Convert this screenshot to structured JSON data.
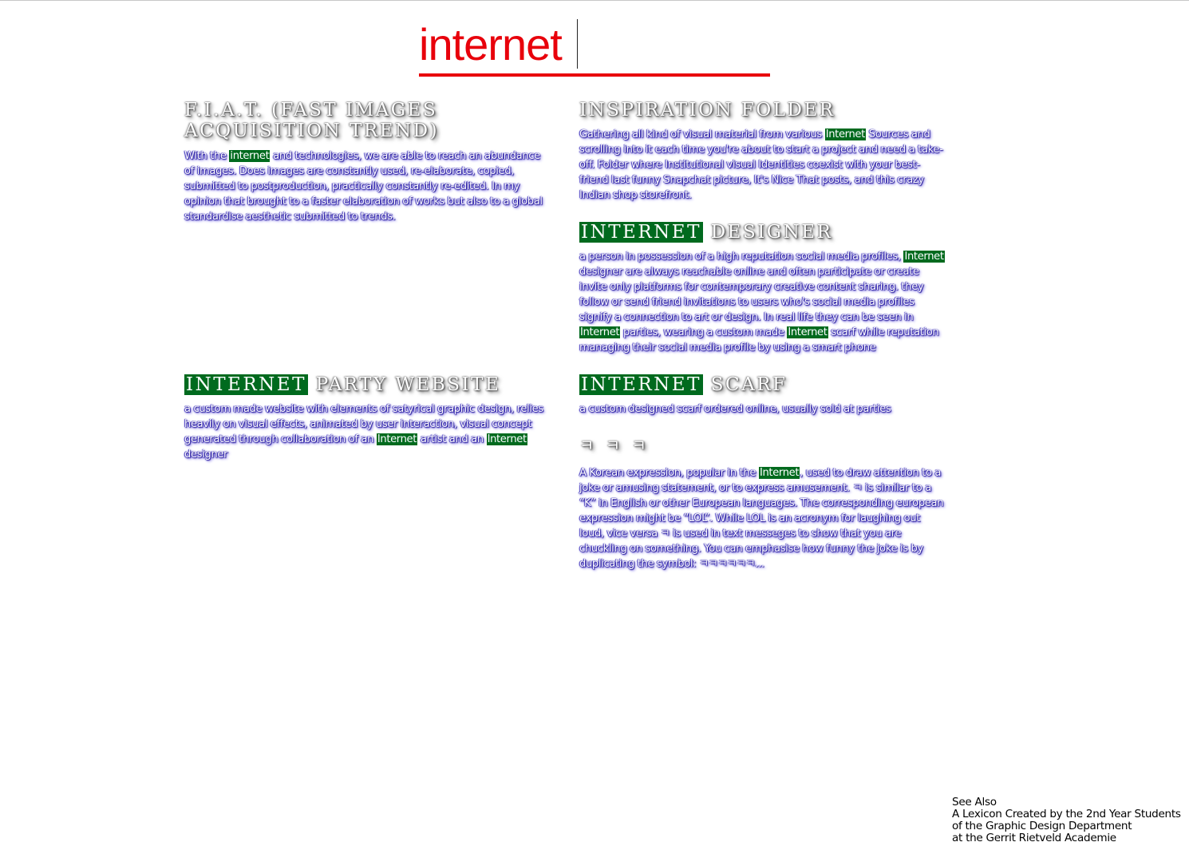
{
  "search": {
    "value": "internet",
    "color": "#e8000b"
  },
  "highlight_color": "#006a1e",
  "entries": {
    "fiat": {
      "title_line1": "F.I.A.T. (Fast images",
      "title_line2": "acquisition trend)",
      "p1": "With the ",
      "hl1": "internet",
      "p2": " and technologies, we are able to reach an abundance of images. Does images are constantly used, re-elaborate, copied, submitted to postproduction, practically constantly re-edited. In my opinion that brought to a faster elaboration of works but also to a global standardise aesthetic submitted to trends."
    },
    "inspiration": {
      "title": "Inspiration Folder",
      "p1": "Gathering all kind of visual material from various ",
      "hl1": "Internet",
      "p2": " Sources and scrolling into it each time you're about to start a project and need a take-off. Folder where Institutional visual Identities coexist with your best-friend last funny Snapchat picture, It's Nice That posts, and this crazy Indian shop storefront."
    },
    "designer": {
      "title_hl": "Internet",
      "title_rest": " Designer",
      "p1": "a person in possession of a high reputation social media profiles, ",
      "hl1": "Internet",
      "p2": " designer are always reachable online and often participate or create invite only platforms for contemporary creative content sharing. they follow or send friend invitations to users who's social media profiles signify a connection to art or design. In real life they can be seen in ",
      "hl2": "Internet",
      "p3": " parties, wearing a custom made ",
      "hl3": "Internet",
      "p4": " scarf while reputation managing their social media profile by using a smart phone"
    },
    "party": {
      "title_hl": "Internet",
      "title_rest": " Party Website",
      "p1": "a custom made website with elements of satyrical graphic design, relies heavily on visual effects, animated by user interaction, visual concept generated through collaboration of an ",
      "hl1": "Internet",
      "p2": " artist and an ",
      "hl2": "Internet",
      "p3": " designer"
    },
    "scarf": {
      "title_hl": "Internet",
      "title_rest": " Scarf",
      "p1": "a custom designed scarf ordered online, usually sold at parties"
    },
    "kkk": {
      "title": "ㅋ ㅋ ㅋ",
      "p1": "A Korean expression, popular in the ",
      "hl1": "Internet",
      "p2": ", used to draw attention to a joke or amusing statement, or to express amusement. ㅋ is similar to a “K” in English or other European languages. The corresponding european expression might be “LOL”. While LOL is an acronym for laughing out loud, vice versa ㅋ is used in text messeges to show that you are chuckling on something. You can emphasise how funny the joke is by duplicating the symbol: ㅋㅋㅋㅋㅋㅋ..."
    }
  },
  "footer": {
    "see_also": "See Also",
    "line1": "A Lexicon Created by the 2nd Year Students",
    "line2": "of the Graphic Design Department",
    "line3": "at the Gerrit Rietveld Academie"
  }
}
